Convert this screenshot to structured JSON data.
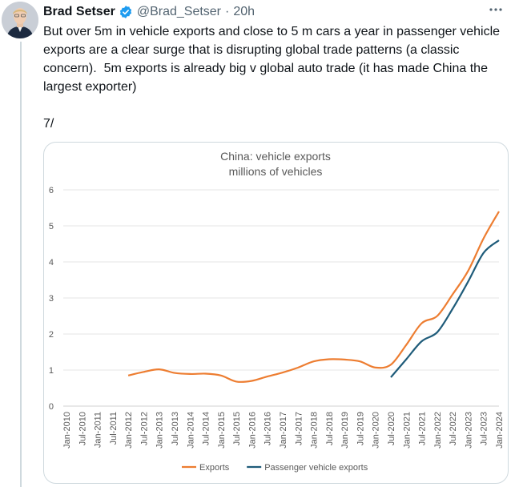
{
  "tweet": {
    "author_name": "Brad Setser",
    "handle": "@Brad_Setser",
    "separator": "·",
    "timestamp": "20h",
    "text": "But over 5m in vehicle exports and close to 5 m cars a year in passenger vehicle exports are a clear surge that is disrupting global trade patterns (a classic concern).  5m exports is already big v global auto trade (it has made China the largest exporter)\n\n7/",
    "icons": [
      "verified-badge-icon",
      "more-options-icon"
    ],
    "colors": {
      "verified": "#1d9bf0",
      "text": "#0f1419",
      "secondary": "#536471"
    }
  },
  "chart_data": {
    "type": "line",
    "title": "China: vehicle exports",
    "subtitle": "millions of vehicles",
    "xlabel": "",
    "ylabel": "",
    "ylim": [
      0,
      6
    ],
    "yticks": [
      "0",
      "1",
      "2",
      "3",
      "4",
      "5",
      "6"
    ],
    "xticks": [
      "Jan-2010",
      "Jul-2010",
      "Jan-2011",
      "Jul-2011",
      "Jan-2012",
      "Jul-2012",
      "Jan-2013",
      "Jul-2013",
      "Jan-2014",
      "Jul-2014",
      "Jan-2015",
      "Jul-2015",
      "Jan-2016",
      "Jul-2016",
      "Jan-2017",
      "Jul-2017",
      "Jan-2018",
      "Jul-2018",
      "Jan-2019",
      "Jul-2019",
      "Jan-2020",
      "Jul-2020",
      "Jan-2021",
      "Jul-2021",
      "Jan-2022",
      "Jul-2022",
      "Jan-2023",
      "Jul-2023",
      "Jan-2024"
    ],
    "grid": "horizontal",
    "legend": "bottom",
    "series": [
      {
        "name": "Exports",
        "color": "#ed7d31",
        "x": [
          "Jan-2012",
          "Jul-2012",
          "Jan-2013",
          "Jul-2013",
          "Jan-2014",
          "Jul-2014",
          "Jan-2015",
          "Jul-2015",
          "Jan-2016",
          "Jul-2016",
          "Jan-2017",
          "Jul-2017",
          "Jan-2018",
          "Jul-2018",
          "Jan-2019",
          "Jul-2019",
          "Jan-2020",
          "Jul-2020",
          "Jan-2021",
          "Jul-2021",
          "Jan-2022",
          "Jul-2022",
          "Jan-2023",
          "Jul-2023",
          "Jan-2024"
        ],
        "values": [
          0.85,
          0.95,
          1.02,
          0.92,
          0.89,
          0.9,
          0.85,
          0.68,
          0.7,
          0.82,
          0.93,
          1.07,
          1.24,
          1.3,
          1.29,
          1.24,
          1.07,
          1.15,
          1.7,
          2.3,
          2.5,
          3.1,
          3.75,
          4.65,
          5.4
        ]
      },
      {
        "name": "Passenger vehicle exports",
        "color": "#1f5c7a",
        "x": [
          "Jul-2020",
          "Jan-2021",
          "Jul-2021",
          "Jan-2022",
          "Jul-2022",
          "Jan-2023",
          "Jul-2023",
          "Jan-2024"
        ],
        "values": [
          0.8,
          1.3,
          1.8,
          2.05,
          2.7,
          3.45,
          4.25,
          4.6
        ]
      }
    ]
  }
}
